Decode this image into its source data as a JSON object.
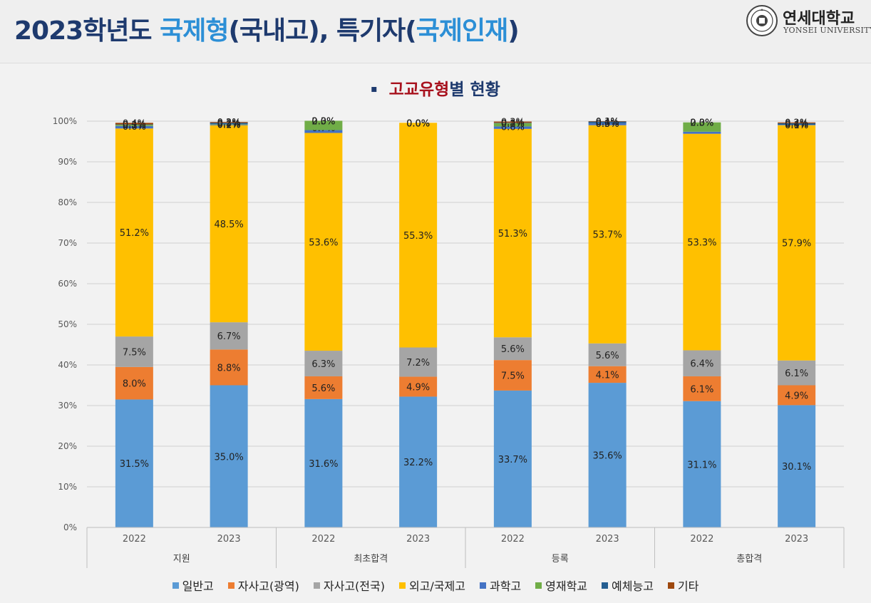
{
  "header": {
    "title_prefix": "2023학년도 ",
    "title_highlight1": "국제형",
    "title_mid": "(국내고), 특기자(",
    "title_highlight2": "국제인재",
    "title_suffix": ")",
    "logo_name": "연세대학교",
    "logo_sub": "YONSEI UNIVERSITY"
  },
  "subtitle": {
    "bullet": "▪",
    "highlight": "고교유형",
    "rest": "별 현황"
  },
  "colors": {
    "일반고": "#5b9bd5",
    "자사고(광역)": "#ed7d31",
    "자사고(전국)": "#a5a5a5",
    "외고/국제고": "#ffc000",
    "과학고": "#4472c4",
    "영재학교": "#70ad47",
    "예체능고": "#255e91",
    "기타": "#9e480e"
  },
  "chart_data": {
    "type": "bar",
    "stacked": true,
    "percent": true,
    "ylim": [
      0,
      100
    ],
    "y_ticks": [
      "0%",
      "10%",
      "20%",
      "30%",
      "40%",
      "50%",
      "60%",
      "70%",
      "80%",
      "90%",
      "100%"
    ],
    "groups": [
      "지원",
      "최초합격",
      "등록",
      "총합격"
    ],
    "categories": [
      "2022",
      "2023",
      "2022",
      "2023",
      "2022",
      "2023",
      "2022",
      "2023"
    ],
    "legend_position": "bottom",
    "series": [
      {
        "name": "일반고",
        "values": [
          31.5,
          35.0,
          31.6,
          32.2,
          33.7,
          35.6,
          31.1,
          30.1
        ],
        "labels": [
          "31.5%",
          "35.0%",
          "31.6%",
          "32.2%",
          "33.7%",
          "35.6%",
          "31.1%",
          "30.1%"
        ]
      },
      {
        "name": "자사고(광역)",
        "values": [
          8.0,
          8.8,
          5.6,
          4.9,
          7.5,
          4.1,
          6.1,
          4.9
        ],
        "labels": [
          "8.0%",
          "8.8%",
          "5.6%",
          "4.9%",
          "7.5%",
          "4.1%",
          "6.1%",
          "4.9%"
        ]
      },
      {
        "name": "자사고(전국)",
        "values": [
          7.5,
          6.7,
          6.3,
          7.2,
          5.6,
          5.6,
          6.4,
          6.1
        ],
        "labels": [
          "7.5%",
          "6.7%",
          "6.3%",
          "7.2%",
          "5.6%",
          "5.6%",
          "6.4%",
          "6.1%"
        ]
      },
      {
        "name": "외고/국제고",
        "values": [
          51.2,
          48.5,
          53.6,
          55.3,
          51.3,
          53.7,
          53.3,
          57.9
        ],
        "labels": [
          "51.2%",
          "48.5%",
          "53.6%",
          "55.3%",
          "51.3%",
          "53.7%",
          "53.3%",
          "57.9%"
        ]
      },
      {
        "name": "과학고",
        "values": [
          0.6,
          0.2,
          0.7,
          0.0,
          0.6,
          0.5,
          0.5,
          0.1
        ],
        "labels": [
          "0.6%",
          "0.2%",
          "0.7%",
          "0.0%",
          "0.6%",
          "0.5%",
          "0.5%",
          "0.1%"
        ]
      },
      {
        "name": "영재학교",
        "values": [
          0.3,
          0.1,
          2.3,
          0.0,
          0.8,
          0.0,
          2.3,
          0.0
        ],
        "labels": [
          "0.3%",
          "0.1%",
          "2.3%",
          "0.0%",
          "0.8%",
          "0.0%",
          "2.3%",
          "0.0%"
        ]
      },
      {
        "name": "예체능고",
        "values": [
          0.1,
          0.3,
          0.0,
          0.0,
          0.1,
          0.4,
          0.0,
          0.4
        ],
        "labels": [
          "0.1%",
          "0.3%",
          "0.0%",
          "0.0%",
          "0.1%",
          "0.4%",
          "0.0%",
          "0.4%"
        ]
      },
      {
        "name": "기타",
        "values": [
          0.4,
          0.2,
          0.0,
          0.0,
          0.3,
          0.1,
          0.0,
          0.2
        ],
        "labels": [
          "0.4%",
          "0.2%",
          "0.0%",
          "0.0%",
          "0.3%",
          "0.1%",
          "0.0%",
          "0.2%"
        ]
      }
    ]
  }
}
